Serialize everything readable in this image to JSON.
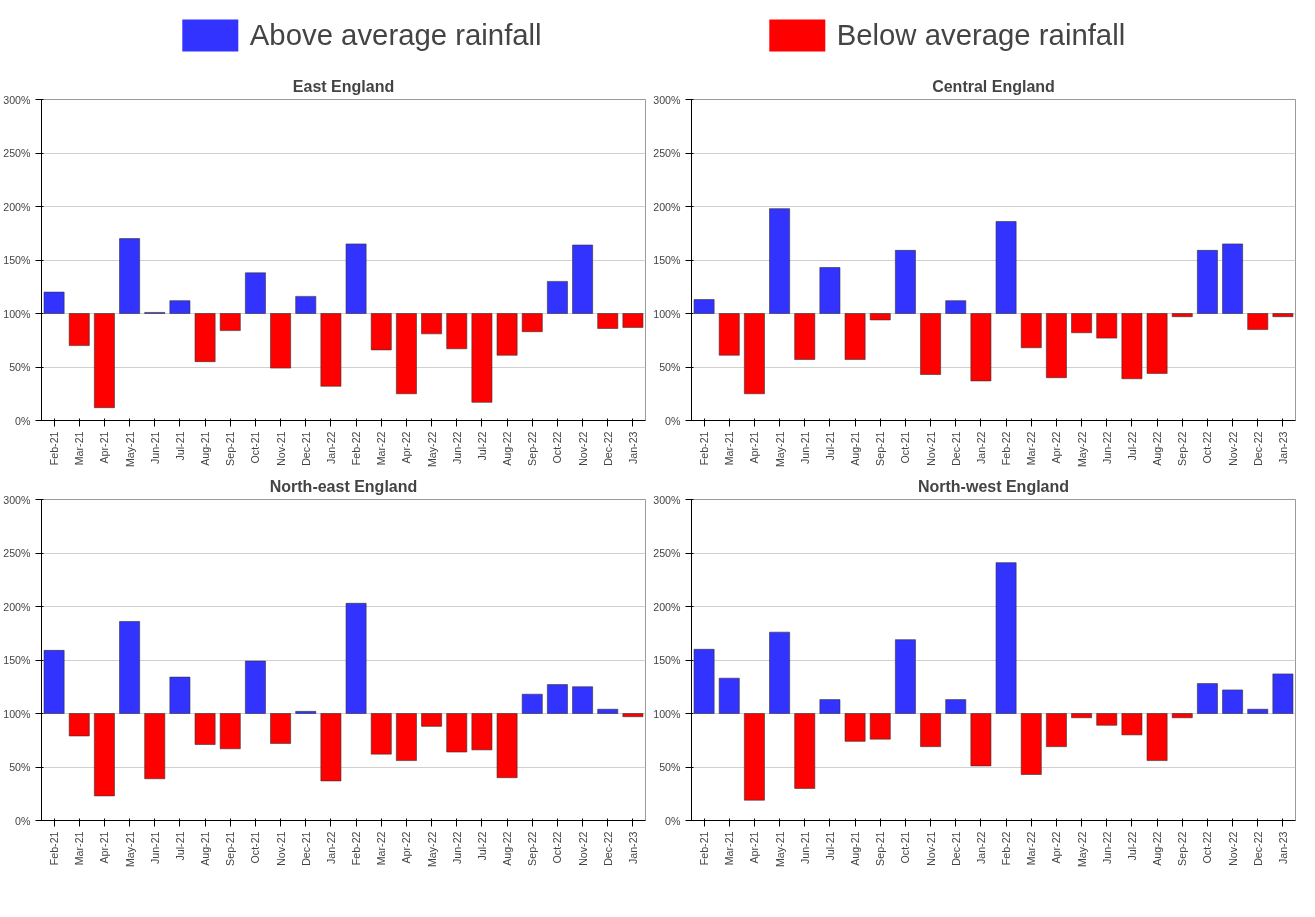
{
  "chart_data": [
    {
      "type": "bar",
      "title": "East England",
      "legend": "top",
      "grid": "y",
      "categories": [
        "Feb-21",
        "Mar-21",
        "Apr-21",
        "May-21",
        "Jun-21",
        "Jul-21",
        "Aug-21",
        "Sep-21",
        "Oct-21",
        "Nov-21",
        "Dec-21",
        "Jan-22",
        "Feb-22",
        "Mar-22",
        "Apr-22",
        "May-22",
        "Jun-22",
        "Jul-22",
        "Aug-22",
        "Sep-22",
        "Oct-22",
        "Nov-22",
        "Dec-22",
        "Jan-23"
      ],
      "ylim": [
        0,
        300
      ],
      "yticks": [
        {
          "value": 0,
          "label": "0%"
        },
        {
          "value": 50,
          "label": "50%"
        },
        {
          "value": 100,
          "label": "100%"
        },
        {
          "value": 150,
          "label": "150%"
        },
        {
          "value": 200,
          "label": "200%"
        },
        {
          "value": 250,
          "label": "250%"
        },
        {
          "value": 300,
          "label": "300%"
        }
      ],
      "series": [
        {
          "name": "Above average rainfall",
          "color": "#3333ff",
          "base": [
            100,
            null,
            null,
            100,
            100,
            100,
            null,
            null,
            100,
            null,
            100,
            null,
            100,
            null,
            null,
            null,
            null,
            null,
            null,
            null,
            100,
            100,
            null,
            null
          ],
          "values": [
            20,
            null,
            null,
            70,
            1,
            12,
            null,
            null,
            38,
            null,
            16,
            null,
            65,
            null,
            null,
            null,
            null,
            null,
            null,
            null,
            30,
            64,
            null,
            null
          ]
        },
        {
          "name": "Below average rainfall",
          "color": "#ff0000",
          "base": [
            null,
            100,
            100,
            null,
            null,
            null,
            100,
            100,
            null,
            100,
            null,
            100,
            null,
            100,
            100,
            100,
            100,
            100,
            100,
            100,
            null,
            null,
            100,
            100
          ],
          "values": [
            null,
            -30,
            -88,
            null,
            null,
            null,
            -45,
            -16,
            null,
            -51,
            null,
            -68,
            null,
            -34,
            -75,
            -19,
            -33,
            -83,
            -39,
            -17,
            null,
            null,
            -14,
            -13
          ]
        }
      ]
    },
    {
      "type": "bar",
      "title": "Central England",
      "grid": "y",
      "categories": [
        "Feb-21",
        "Mar-21",
        "Apr-21",
        "May-21",
        "Jun-21",
        "Jul-21",
        "Aug-21",
        "Sep-21",
        "Oct-21",
        "Nov-21",
        "Dec-21",
        "Jan-22",
        "Feb-22",
        "Mar-22",
        "Apr-22",
        "May-22",
        "Jun-22",
        "Jul-22",
        "Aug-22",
        "Sep-22",
        "Oct-22",
        "Nov-22",
        "Dec-22",
        "Jan-23"
      ],
      "ylim": [
        0,
        300
      ],
      "yticks": [
        {
          "value": 0,
          "label": "0%"
        },
        {
          "value": 50,
          "label": "50%"
        },
        {
          "value": 100,
          "label": "100%"
        },
        {
          "value": 150,
          "label": "150%"
        },
        {
          "value": 200,
          "label": "200%"
        },
        {
          "value": 250,
          "label": "250%"
        },
        {
          "value": 300,
          "label": "300%"
        }
      ],
      "series": [
        {
          "color": "#3333ff",
          "base": [
            100,
            null,
            null,
            100,
            null,
            100,
            null,
            null,
            100,
            null,
            100,
            null,
            100,
            null,
            null,
            null,
            null,
            null,
            null,
            null,
            100,
            100,
            null,
            null
          ],
          "values": [
            13,
            null,
            null,
            98,
            null,
            43,
            null,
            null,
            59,
            null,
            12,
            null,
            86,
            null,
            null,
            null,
            null,
            null,
            null,
            null,
            59,
            65,
            null,
            null
          ]
        },
        {
          "color": "#ff0000",
          "base": [
            null,
            100,
            100,
            null,
            100,
            null,
            100,
            100,
            null,
            100,
            null,
            100,
            null,
            100,
            100,
            100,
            100,
            100,
            100,
            100,
            null,
            null,
            100,
            100
          ],
          "values": [
            null,
            -39,
            -75,
            null,
            -43,
            null,
            -43,
            -6,
            null,
            -57,
            null,
            -63,
            null,
            -32,
            -60,
            -18,
            -23,
            -61,
            -56,
            -3,
            null,
            null,
            -15,
            -3
          ]
        }
      ]
    },
    {
      "type": "bar",
      "title": "North-east England",
      "grid": "y",
      "categories": [
        "Feb-21",
        "Mar-21",
        "Apr-21",
        "May-21",
        "Jun-21",
        "Jul-21",
        "Aug-21",
        "Sep-21",
        "Oct-21",
        "Nov-21",
        "Dec-21",
        "Jan-22",
        "Feb-22",
        "Mar-22",
        "Apr-22",
        "May-22",
        "Jun-22",
        "Jul-22",
        "Aug-22",
        "Sep-22",
        "Oct-22",
        "Nov-22",
        "Dec-22",
        "Jan-23"
      ],
      "ylim": [
        0,
        300
      ],
      "yticks": [
        {
          "value": 0,
          "label": "0%"
        },
        {
          "value": 50,
          "label": "50%"
        },
        {
          "value": 100,
          "label": "100%"
        },
        {
          "value": 150,
          "label": "150%"
        },
        {
          "value": 200,
          "label": "200%"
        },
        {
          "value": 250,
          "label": "250%"
        },
        {
          "value": 300,
          "label": "300%"
        }
      ],
      "series": [
        {
          "color": "#3333ff",
          "base": [
            100,
            null,
            null,
            100,
            null,
            100,
            null,
            null,
            100,
            null,
            100,
            null,
            100,
            null,
            null,
            null,
            null,
            null,
            null,
            100,
            100,
            100,
            100,
            null
          ],
          "values": [
            59,
            null,
            null,
            86,
            null,
            34,
            null,
            null,
            49,
            null,
            2,
            null,
            103,
            null,
            null,
            null,
            null,
            null,
            null,
            18,
            27,
            25,
            4,
            null
          ]
        },
        {
          "color": "#ff0000",
          "base": [
            null,
            100,
            100,
            null,
            100,
            null,
            100,
            100,
            null,
            100,
            null,
            100,
            null,
            100,
            100,
            100,
            100,
            100,
            100,
            null,
            null,
            null,
            null,
            100
          ],
          "values": [
            null,
            -21,
            -77,
            null,
            -61,
            null,
            -29,
            -33,
            null,
            -28,
            null,
            -63,
            null,
            -38,
            -44,
            -12,
            -36,
            -34,
            -60,
            null,
            null,
            null,
            null,
            -3
          ]
        }
      ]
    },
    {
      "type": "bar",
      "title": "North-west England",
      "grid": "y",
      "categories": [
        "Feb-21",
        "Mar-21",
        "Apr-21",
        "May-21",
        "Jun-21",
        "Jul-21",
        "Aug-21",
        "Sep-21",
        "Oct-21",
        "Nov-21",
        "Dec-21",
        "Jan-22",
        "Feb-22",
        "Mar-22",
        "Apr-22",
        "May-22",
        "Jun-22",
        "Jul-22",
        "Aug-22",
        "Sep-22",
        "Oct-22",
        "Nov-22",
        "Dec-22",
        "Jan-23"
      ],
      "ylim": [
        0,
        300
      ],
      "yticks": [
        {
          "value": 0,
          "label": "0%"
        },
        {
          "value": 50,
          "label": "50%"
        },
        {
          "value": 100,
          "label": "100%"
        },
        {
          "value": 150,
          "label": "150%"
        },
        {
          "value": 200,
          "label": "200%"
        },
        {
          "value": 250,
          "label": "250%"
        },
        {
          "value": 300,
          "label": "300%"
        }
      ],
      "series": [
        {
          "color": "#3333ff",
          "base": [
            100,
            100,
            null,
            100,
            null,
            100,
            null,
            null,
            100,
            null,
            100,
            null,
            100,
            null,
            null,
            null,
            null,
            null,
            null,
            null,
            100,
            100,
            100,
            100
          ],
          "values": [
            60,
            33,
            null,
            76,
            null,
            13,
            null,
            null,
            69,
            null,
            13,
            null,
            141,
            null,
            null,
            null,
            null,
            null,
            null,
            null,
            28,
            22,
            4,
            37
          ]
        },
        {
          "color": "#ff0000",
          "base": [
            null,
            null,
            100,
            null,
            100,
            null,
            100,
            100,
            null,
            100,
            null,
            100,
            null,
            100,
            100,
            100,
            100,
            100,
            100,
            100,
            null,
            null,
            null,
            null
          ],
          "values": [
            null,
            null,
            -81,
            null,
            -70,
            null,
            -26,
            -24,
            null,
            -31,
            null,
            -49,
            null,
            -57,
            -31,
            -4,
            -11,
            -20,
            -44,
            -4,
            null,
            null,
            null,
            null
          ]
        }
      ]
    }
  ]
}
